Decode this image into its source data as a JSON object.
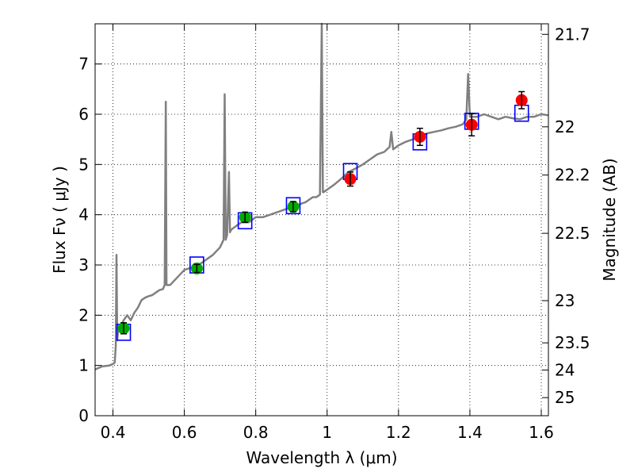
{
  "chart_data": {
    "type": "scatter",
    "xlabel": "Wavelength  λ (μm)",
    "ylabel": "Flux  Fν  ( μJy )",
    "y2label": "Magnitude (AB)",
    "xlim": [
      0.35,
      1.62
    ],
    "ylim": [
      0,
      7.8
    ],
    "grid": true,
    "x_ticks": [
      0.4,
      0.6,
      0.8,
      1.0,
      1.2,
      1.4,
      1.6
    ],
    "x_tick_labels": [
      "0.4",
      "0.6",
      "0.8",
      "1",
      "1.2",
      "1.4",
      "1.6"
    ],
    "y_ticks": [
      0,
      1,
      2,
      3,
      4,
      5,
      6,
      7
    ],
    "y_tick_labels": [
      "0",
      "1",
      "2",
      "3",
      "4",
      "5",
      "6",
      "7"
    ],
    "y2_ticks": [
      {
        "flux": 7.59,
        "label": "21.7"
      },
      {
        "flux": 5.75,
        "label": "22"
      },
      {
        "flux": 4.79,
        "label": "22.2"
      },
      {
        "flux": 3.63,
        "label": "22.5"
      },
      {
        "flux": 2.29,
        "label": "23"
      },
      {
        "flux": 1.45,
        "label": "23.5"
      },
      {
        "flux": 0.91,
        "label": "24"
      },
      {
        "flux": 0.36,
        "label": "25"
      }
    ],
    "colors": {
      "spectrum": "#808080",
      "optical": "#00aa00",
      "infrared": "#ff0000",
      "model": "#0000ff",
      "errorbar": "#000000"
    },
    "model_photometry": {
      "x": [
        0.43,
        0.635,
        0.77,
        0.905,
        1.065,
        1.26,
        1.405,
        1.545
      ],
      "y": [
        1.66,
        3.0,
        3.88,
        4.18,
        4.86,
        5.45,
        5.86,
        6.02
      ]
    },
    "observed_optical": {
      "x": [
        0.43,
        0.635,
        0.77,
        0.905
      ],
      "y": [
        1.74,
        2.93,
        3.95,
        4.16
      ],
      "err": [
        0.11,
        0.08,
        0.1,
        0.1
      ]
    },
    "observed_nir": {
      "x": [
        1.065,
        1.26,
        1.405,
        1.545
      ],
      "y": [
        4.71,
        5.55,
        5.79,
        6.28
      ],
      "err": [
        0.14,
        0.17,
        0.22,
        0.17
      ]
    },
    "spectrum": {
      "x": [
        0.35,
        0.37,
        0.39,
        0.4,
        0.405,
        0.408,
        0.41,
        0.412,
        0.414,
        0.42,
        0.43,
        0.44,
        0.45,
        0.46,
        0.47,
        0.48,
        0.49,
        0.5,
        0.51,
        0.52,
        0.53,
        0.54,
        0.545,
        0.548,
        0.55,
        0.56,
        0.58,
        0.6,
        0.62,
        0.64,
        0.66,
        0.68,
        0.7,
        0.71,
        0.713,
        0.716,
        0.72,
        0.725,
        0.728,
        0.731,
        0.74,
        0.75,
        0.76,
        0.78,
        0.8,
        0.82,
        0.84,
        0.86,
        0.88,
        0.9,
        0.92,
        0.94,
        0.96,
        0.97,
        0.98,
        0.985,
        0.988,
        0.99,
        1.0,
        1.02,
        1.04,
        1.06,
        1.08,
        1.1,
        1.12,
        1.14,
        1.16,
        1.175,
        1.18,
        1.185,
        1.2,
        1.22,
        1.24,
        1.26,
        1.28,
        1.3,
        1.32,
        1.34,
        1.36,
        1.38,
        1.39,
        1.395,
        1.4,
        1.42,
        1.44,
        1.46,
        1.48,
        1.5,
        1.52,
        1.54,
        1.56,
        1.58,
        1.6,
        1.62
      ],
      "y": [
        0.92,
        0.98,
        1.0,
        1.03,
        1.06,
        1.4,
        3.2,
        1.5,
        1.65,
        1.75,
        1.9,
        2.0,
        1.9,
        2.05,
        2.15,
        2.3,
        2.35,
        2.38,
        2.4,
        2.45,
        2.5,
        2.52,
        2.6,
        6.25,
        2.6,
        2.6,
        2.75,
        2.9,
        2.95,
        3.0,
        3.1,
        3.2,
        3.35,
        3.5,
        6.4,
        3.5,
        3.6,
        4.85,
        3.65,
        3.7,
        3.75,
        3.8,
        3.85,
        3.85,
        3.95,
        3.95,
        4.0,
        4.05,
        4.1,
        4.15,
        4.2,
        4.25,
        4.35,
        4.35,
        4.4,
        7.85,
        4.45,
        4.45,
        4.5,
        4.6,
        4.72,
        4.85,
        4.92,
        5.0,
        5.1,
        5.2,
        5.25,
        5.35,
        5.65,
        5.3,
        5.38,
        5.45,
        5.5,
        5.55,
        5.62,
        5.65,
        5.68,
        5.72,
        5.75,
        5.8,
        5.9,
        6.8,
        5.95,
        5.95,
        6.0,
        5.95,
        5.9,
        5.95,
        5.92,
        5.9,
        5.95,
        5.95,
        6.0,
        5.98
      ]
    }
  }
}
